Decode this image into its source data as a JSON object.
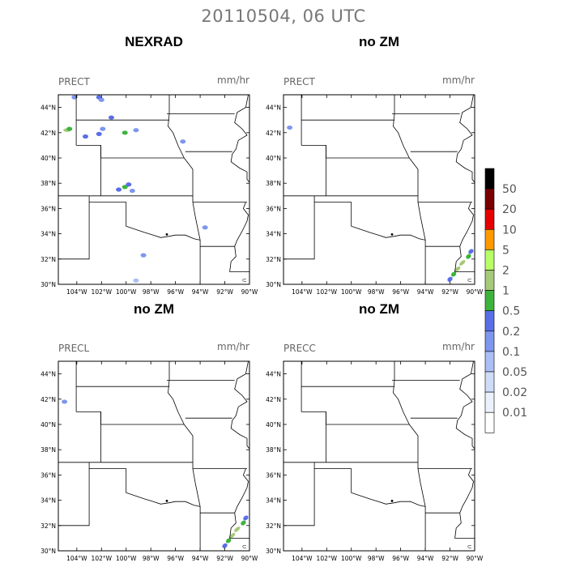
{
  "figure": {
    "title": "20110504, 06 UTC"
  },
  "panels": [
    {
      "title": "NEXRAD",
      "variable": "PRECT",
      "units": "mm/hr"
    },
    {
      "title": "no ZM",
      "variable": "PRECT",
      "units": "mm/hr"
    },
    {
      "title": "no ZM",
      "variable": "PRECL",
      "units": "mm/hr"
    },
    {
      "title": "no ZM",
      "variable": "PRECC",
      "units": "mm/hr"
    }
  ],
  "axes": {
    "lon_labels": [
      "104°W",
      "102°W",
      "100°W",
      "98°W",
      "96°W",
      "94°W",
      "92°W",
      "90°W"
    ],
    "lat_labels": [
      "44°N",
      "42°N",
      "40°N",
      "38°N",
      "36°N",
      "34°N",
      "32°N",
      "30°N"
    ],
    "lon_range": [
      -105.5,
      -90
    ],
    "lat_range": [
      30,
      45
    ]
  },
  "colorbar": {
    "labels": [
      "50",
      "20",
      "10",
      "5",
      "2",
      "1",
      "0.5",
      "0.2",
      "0.1",
      "0.05",
      "0.02",
      "0.01"
    ],
    "colors": [
      "#000000",
      "#7a0000",
      "#e60000",
      "#ff9900",
      "#b8ff66",
      "#a6c97a",
      "#3cb43c",
      "#5a6ee6",
      "#7d96ee",
      "#a9bff5",
      "#cfdcf8",
      "#ecf2fc",
      "#ffffff"
    ]
  },
  "chart_data": [
    {
      "type": "heatmap",
      "title": "NEXRAD",
      "field": "PRECT",
      "units": "mm/hr",
      "cells": [
        {
          "lon": -104.8,
          "lat": 42.2,
          "value": 0.5
        },
        {
          "lon": -104.6,
          "lat": 42.3,
          "value": 0.2
        },
        {
          "lon": -104.2,
          "lat": 44.8,
          "value": 0.05
        },
        {
          "lon": -102.2,
          "lat": 44.8,
          "value": 0.1
        },
        {
          "lon": -102.0,
          "lat": 44.6,
          "value": 0.05
        },
        {
          "lon": -101.2,
          "lat": 43.2,
          "value": 0.1
        },
        {
          "lon": -103.3,
          "lat": 41.7,
          "value": 0.1
        },
        {
          "lon": -102.2,
          "lat": 41.9,
          "value": 0.1
        },
        {
          "lon": -101.9,
          "lat": 42.3,
          "value": 0.05
        },
        {
          "lon": -100.1,
          "lat": 42.0,
          "value": 0.2
        },
        {
          "lon": -99.2,
          "lat": 42.2,
          "value": 0.05
        },
        {
          "lon": -95.4,
          "lat": 41.3,
          "value": 0.05
        },
        {
          "lon": -100.1,
          "lat": 37.7,
          "value": 0.2
        },
        {
          "lon": -99.8,
          "lat": 37.9,
          "value": 0.1
        },
        {
          "lon": -100.6,
          "lat": 37.5,
          "value": 0.1
        },
        {
          "lon": -99.5,
          "lat": 37.4,
          "value": 0.05
        },
        {
          "lon": -98.6,
          "lat": 32.3,
          "value": 0.05
        },
        {
          "lon": -93.6,
          "lat": 34.5,
          "value": 0.05
        },
        {
          "lon": -99.2,
          "lat": 30.3,
          "value": 0.02
        }
      ]
    },
    {
      "type": "heatmap",
      "title": "no ZM",
      "field": "PRECT",
      "units": "mm/hr",
      "cells": [
        {
          "lon": -91.4,
          "lat": 31.2,
          "value": 0.5
        },
        {
          "lon": -91.0,
          "lat": 31.7,
          "value": 0.5
        },
        {
          "lon": -90.5,
          "lat": 32.2,
          "value": 0.2
        },
        {
          "lon": -91.7,
          "lat": 30.8,
          "value": 0.2
        },
        {
          "lon": -90.3,
          "lat": 32.6,
          "value": 0.1
        },
        {
          "lon": -92.0,
          "lat": 30.4,
          "value": 0.1
        },
        {
          "lon": -105.0,
          "lat": 42.4,
          "value": 0.05
        }
      ]
    },
    {
      "type": "heatmap",
      "title": "no ZM",
      "field": "PRECL",
      "units": "mm/hr",
      "cells": [
        {
          "lon": -91.4,
          "lat": 31.2,
          "value": 0.5
        },
        {
          "lon": -91.0,
          "lat": 31.7,
          "value": 0.5
        },
        {
          "lon": -90.5,
          "lat": 32.2,
          "value": 0.2
        },
        {
          "lon": -91.7,
          "lat": 30.8,
          "value": 0.2
        },
        {
          "lon": -90.3,
          "lat": 32.6,
          "value": 0.1
        },
        {
          "lon": -92.0,
          "lat": 30.4,
          "value": 0.1
        },
        {
          "lon": -105.0,
          "lat": 41.8,
          "value": 0.05
        }
      ]
    },
    {
      "type": "heatmap",
      "title": "no ZM",
      "field": "PRECC",
      "units": "mm/hr",
      "cells": []
    }
  ]
}
